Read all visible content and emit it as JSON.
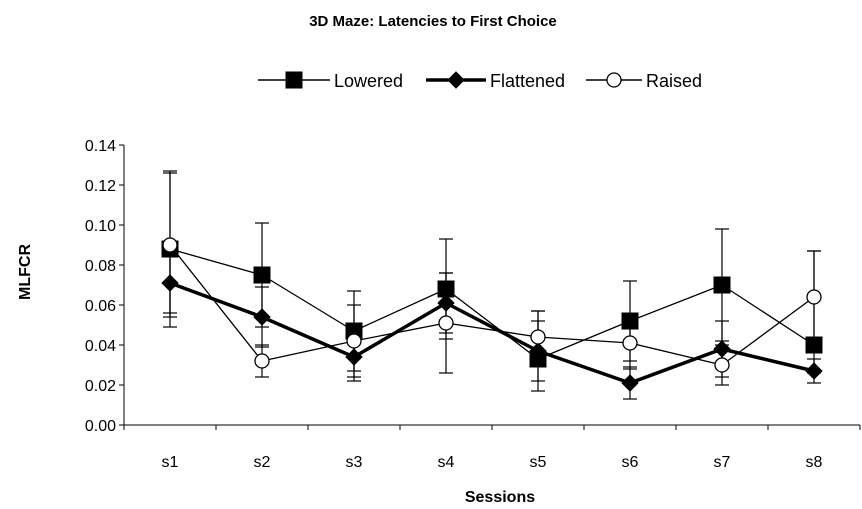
{
  "chart_data": {
    "type": "line",
    "title": "3D Maze: Latencies to First Choice",
    "xlabel": "Sessions",
    "ylabel": "MLFCR",
    "categories": [
      "s1",
      "s2",
      "s3",
      "s4",
      "s5",
      "s6",
      "s7",
      "s8"
    ],
    "ylim": [
      0,
      0.14
    ],
    "yticks": [
      "0.00",
      "0.02",
      "0.04",
      "0.06",
      "0.08",
      "0.10",
      "0.12",
      "0.14"
    ],
    "grid": false,
    "legend_position": "top",
    "series": [
      {
        "name": "Lowered",
        "marker": "filled-square",
        "line": "thin",
        "values": [
          0.088,
          0.075,
          0.047,
          0.068,
          0.033,
          0.052,
          0.07,
          0.04
        ],
        "error_high": [
          0.127,
          0.101,
          0.067,
          0.093,
          0.057,
          0.072,
          0.098,
          0.087
        ],
        "error_low": [
          0.049,
          0.049,
          0.027,
          0.043,
          0.017,
          0.032,
          0.042,
          0.026
        ]
      },
      {
        "name": "Flattened",
        "marker": "filled-diamond",
        "line": "thick",
        "values": [
          0.071,
          0.054,
          0.034,
          0.061,
          0.037,
          0.021,
          0.038,
          0.027
        ],
        "error_high": [
          0.086,
          0.069,
          0.046,
          0.076,
          0.052,
          0.029,
          0.052,
          0.033
        ],
        "error_low": [
          0.056,
          0.039,
          0.022,
          0.046,
          0.022,
          0.013,
          0.024,
          0.021
        ]
      },
      {
        "name": "Raised",
        "marker": "open-circle",
        "line": "thin",
        "values": [
          0.09,
          0.032,
          0.042,
          0.051,
          0.044,
          0.041,
          0.03,
          0.064
        ],
        "error_high": [
          0.126,
          0.04,
          0.06,
          0.076,
          0.057,
          0.054,
          0.04,
          0.087
        ],
        "error_low": [
          0.054,
          0.024,
          0.024,
          0.026,
          0.031,
          0.028,
          0.02,
          0.041
        ]
      }
    ]
  }
}
